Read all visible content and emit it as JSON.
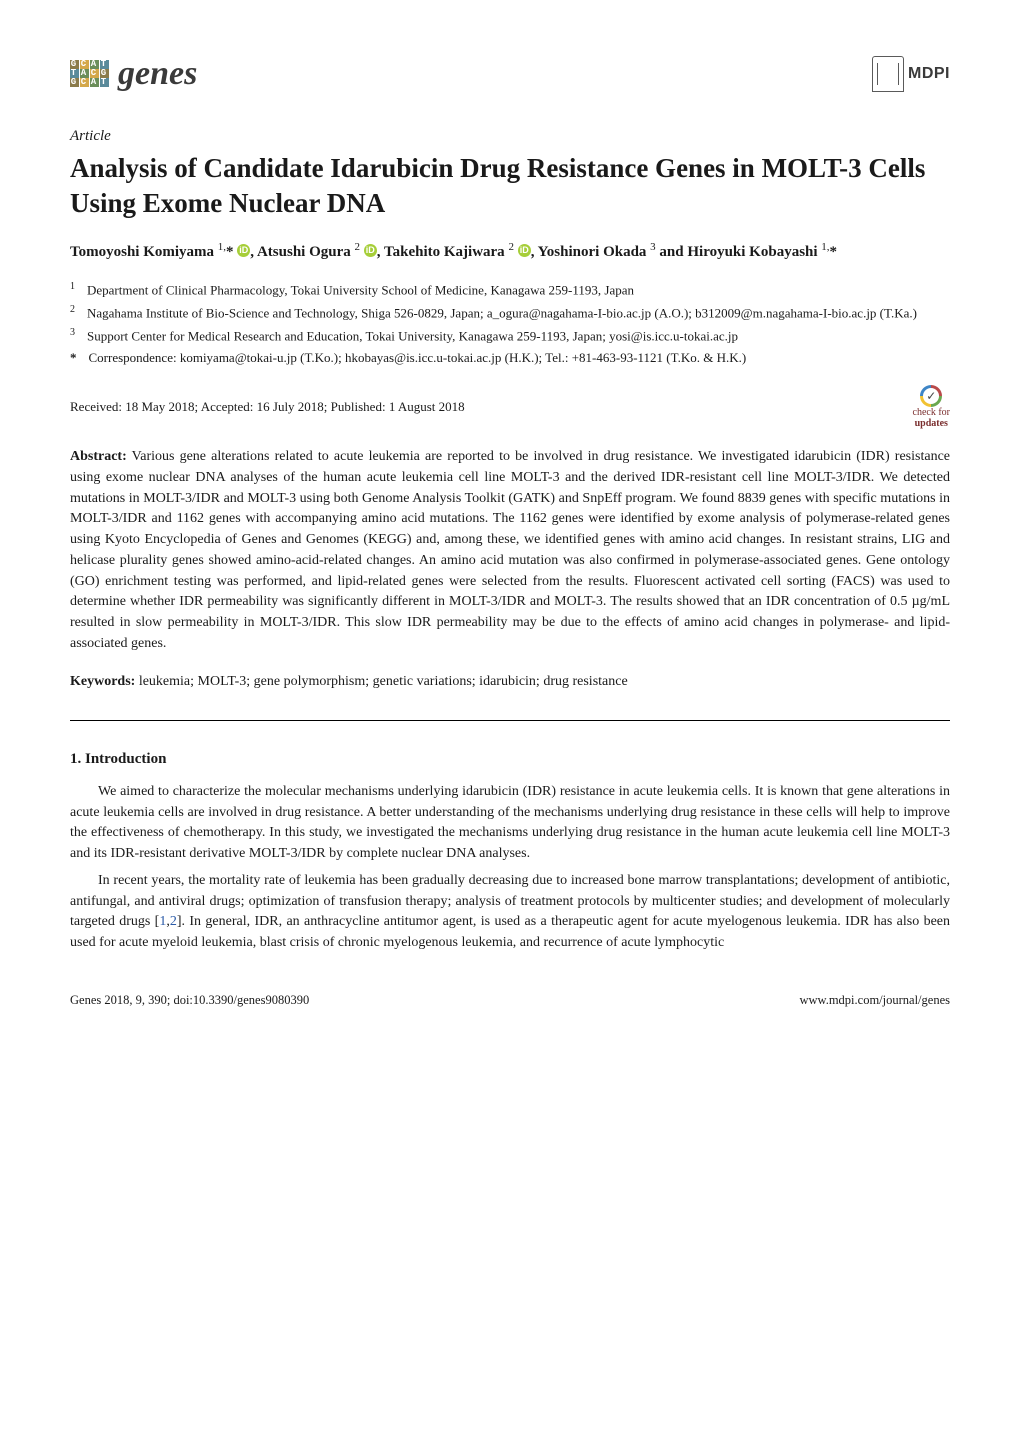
{
  "header": {
    "journal_name": "genes",
    "publisher": "MDPI"
  },
  "article_type": "Article",
  "title": "Analysis of Candidate Idarubicin Drug Resistance Genes in MOLT-3 Cells Using Exome Nuclear DNA",
  "authors_html": "Tomoyoshi Komiyama <sup>1,</sup>* <span class=\"orcid\">iD</span>, Atsushi Ogura <sup>2</sup> <span class=\"orcid\">iD</span>, Takehito Kajiwara <sup>2</sup> <span class=\"orcid\">iD</span>, Yoshinori Okada <sup>3</sup> and Hiroyuki Kobayashi <sup>1,</sup>*",
  "affiliations": [
    {
      "num": "1",
      "text": "Department of Clinical Pharmacology, Tokai University School of Medicine, Kanagawa 259-1193, Japan"
    },
    {
      "num": "2",
      "text": "Nagahama Institute of Bio-Science and Technology, Shiga 526-0829, Japan; a_ogura@nagahama-I-bio.ac.jp (A.O.); b312009@m.nagahama-I-bio.ac.jp (T.Ka.)"
    },
    {
      "num": "3",
      "text": "Support Center for Medical Research and Education, Tokai University, Kanagawa 259-1193, Japan; yosi@is.icc.u-tokai.ac.jp"
    }
  ],
  "correspondence": "Correspondence: komiyama@tokai-u.jp (T.Ko.); hkobayas@is.icc.u-tokai.ac.jp (H.K.); Tel.: +81-463-93-1121 (T.Ko. & H.K.)",
  "dates": "Received: 18 May 2018; Accepted: 16 July 2018; Published: 1 August 2018",
  "check_updates_top": "check for",
  "check_updates_bottom": "updates",
  "abstract_label": "Abstract:",
  "abstract_body": "Various gene alterations related to acute leukemia are reported to be involved in drug resistance. We investigated idarubicin (IDR) resistance using exome nuclear DNA analyses of the human acute leukemia cell line MOLT-3 and the derived IDR-resistant cell line MOLT-3/IDR. We detected mutations in MOLT-3/IDR and MOLT-3 using both Genome Analysis Toolkit (GATK) and SnpEff program. We found 8839 genes with specific mutations in MOLT-3/IDR and 1162 genes with accompanying amino acid mutations. The 1162 genes were identified by exome analysis of polymerase-related genes using Kyoto Encyclopedia of Genes and Genomes (KEGG) and, among these, we identified genes with amino acid changes. In resistant strains, LIG and helicase plurality genes showed amino-acid-related changes. An amino acid mutation was also confirmed in polymerase-associated genes. Gene ontology (GO) enrichment testing was performed, and lipid-related genes were selected from the results. Fluorescent activated cell sorting (FACS) was used to determine whether IDR permeability was significantly different in MOLT-3/IDR and MOLT-3. The results showed that an IDR concentration of 0.5 µg/mL resulted in slow permeability in MOLT-3/IDR. This slow IDR permeability may be due to the effects of amino acid changes in polymerase- and lipid-associated genes.",
  "keywords_label": "Keywords:",
  "keywords_body": "leukemia; MOLT-3; gene polymorphism; genetic variations; idarubicin; drug resistance",
  "section_1_heading": "1. Introduction",
  "para_1": "We aimed to characterize the molecular mechanisms underlying idarubicin (IDR) resistance in acute leukemia cells. It is known that gene alterations in acute leukemia cells are involved in drug resistance. A better understanding of the mechanisms underlying drug resistance in these cells will help to improve the effectiveness of chemotherapy. In this study, we investigated the mechanisms underlying drug resistance in the human acute leukemia cell line MOLT-3 and its IDR-resistant derivative MOLT-3/IDR by complete nuclear DNA analyses.",
  "para_2_pre": "In recent years, the mortality rate of leukemia has been gradually decreasing due to increased bone marrow transplantations; development of antibiotic, antifungal, and antiviral drugs; optimization of transfusion therapy; analysis of treatment protocols by multicenter studies; and development of molecularly targeted drugs [",
  "ref_1": "1",
  "ref_sep": ",",
  "ref_2": "2",
  "para_2_post": "]. In general, IDR, an anthracycline antitumor agent, is used as a therapeutic agent for acute myelogenous leukemia. IDR has also been used for acute myeloid leukemia, blast crisis of chronic myelogenous leukemia, and recurrence of acute lymphocytic",
  "footer": {
    "left": "Genes 2018, 9, 390; doi:10.3390/genes9080390",
    "right": "www.mdpi.com/journal/genes"
  }
}
